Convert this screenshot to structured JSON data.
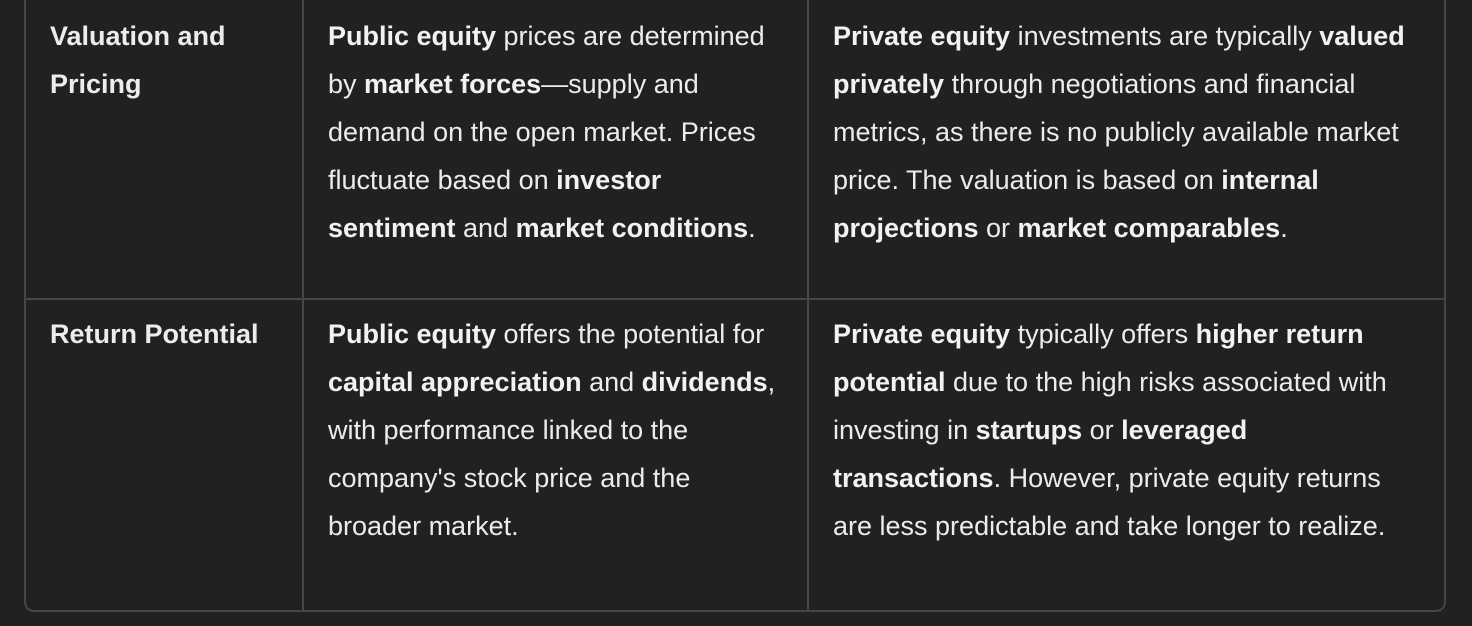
{
  "table": {
    "rows": [
      {
        "label": "Valuation and Pricing",
        "public": [
          {
            "b": true,
            "t": "Public equity"
          },
          {
            "b": false,
            "t": " prices are determined by "
          },
          {
            "b": true,
            "t": "market forces"
          },
          {
            "b": false,
            "t": "—supply and demand on the open market. Prices fluctuate based on "
          },
          {
            "b": true,
            "t": "investor sentiment"
          },
          {
            "b": false,
            "t": " and "
          },
          {
            "b": true,
            "t": "market conditions"
          },
          {
            "b": false,
            "t": "."
          }
        ],
        "private": [
          {
            "b": true,
            "t": "Private equity"
          },
          {
            "b": false,
            "t": " investments are typically "
          },
          {
            "b": true,
            "t": "valued privately"
          },
          {
            "b": false,
            "t": " through negotiations and financial metrics, as there is no publicly available market price. The valuation is based on "
          },
          {
            "b": true,
            "t": "internal projections"
          },
          {
            "b": false,
            "t": " or "
          },
          {
            "b": true,
            "t": "market comparables"
          },
          {
            "b": false,
            "t": "."
          }
        ]
      },
      {
        "label": "Return Potential",
        "public": [
          {
            "b": true,
            "t": "Public equity"
          },
          {
            "b": false,
            "t": " offers the potential for "
          },
          {
            "b": true,
            "t": "capital appreciation"
          },
          {
            "b": false,
            "t": " and "
          },
          {
            "b": true,
            "t": "dividends"
          },
          {
            "b": false,
            "t": ", with performance linked to the company's stock price and the broader market."
          }
        ],
        "private": [
          {
            "b": true,
            "t": "Private equity"
          },
          {
            "b": false,
            "t": " typically offers "
          },
          {
            "b": true,
            "t": "higher return potential"
          },
          {
            "b": false,
            "t": " due to the high risks associated with investing in "
          },
          {
            "b": true,
            "t": "startups"
          },
          {
            "b": false,
            "t": " or "
          },
          {
            "b": true,
            "t": "leveraged transactions"
          },
          {
            "b": false,
            "t": ". However, private equity returns are less predictable and take longer to realize."
          }
        ]
      }
    ]
  }
}
